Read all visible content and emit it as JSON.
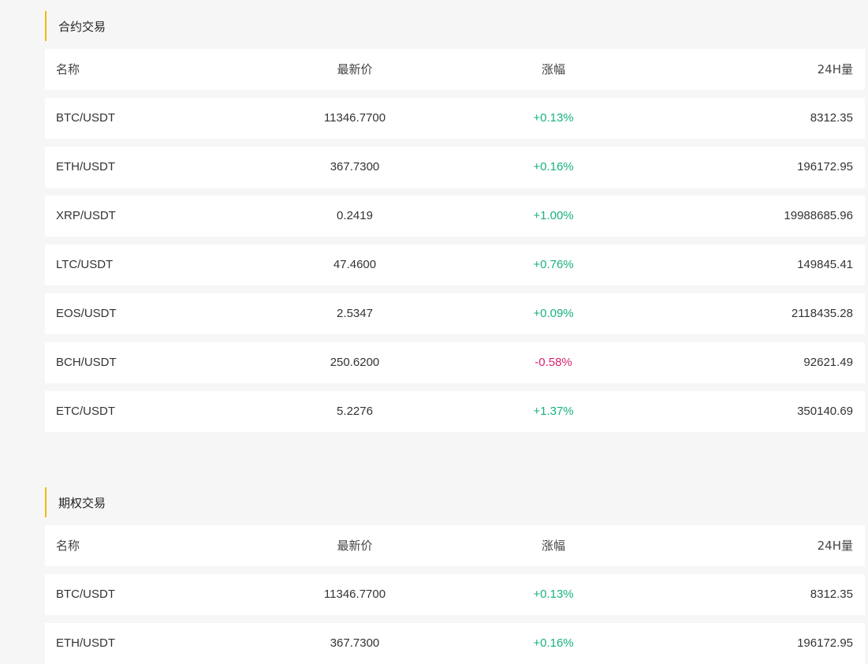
{
  "sections": [
    {
      "title": "合约交易",
      "columns": {
        "name": "名称",
        "price": "最新价",
        "change": "涨幅",
        "volume": "24H量"
      },
      "rows": [
        {
          "name": "BTC/USDT",
          "price": "11346.7700",
          "change": "+0.13%",
          "volume": "8312.35",
          "dir": "up"
        },
        {
          "name": "ETH/USDT",
          "price": "367.7300",
          "change": "+0.16%",
          "volume": "196172.95",
          "dir": "up"
        },
        {
          "name": "XRP/USDT",
          "price": "0.2419",
          "change": "+1.00%",
          "volume": "19988685.96",
          "dir": "up"
        },
        {
          "name": "LTC/USDT",
          "price": "47.4600",
          "change": "+0.76%",
          "volume": "149845.41",
          "dir": "up"
        },
        {
          "name": "EOS/USDT",
          "price": "2.5347",
          "change": "+0.09%",
          "volume": "2118435.28",
          "dir": "up"
        },
        {
          "name": "BCH/USDT",
          "price": "250.6200",
          "change": "-0.58%",
          "volume": "92621.49",
          "dir": "down"
        },
        {
          "name": "ETC/USDT",
          "price": "5.2276",
          "change": "+1.37%",
          "volume": "350140.69",
          "dir": "up"
        }
      ]
    },
    {
      "title": "期权交易",
      "columns": {
        "name": "名称",
        "price": "最新价",
        "change": "涨幅",
        "volume": "24H量"
      },
      "rows": [
        {
          "name": "BTC/USDT",
          "price": "11346.7700",
          "change": "+0.13%",
          "volume": "8312.35",
          "dir": "up"
        },
        {
          "name": "ETH/USDT",
          "price": "367.7300",
          "change": "+0.16%",
          "volume": "196172.95",
          "dir": "up"
        }
      ]
    }
  ],
  "colors": {
    "accent": "#f0b90b",
    "up": "#17b37a",
    "down": "#d9236f",
    "background": "#f7f6f7"
  }
}
